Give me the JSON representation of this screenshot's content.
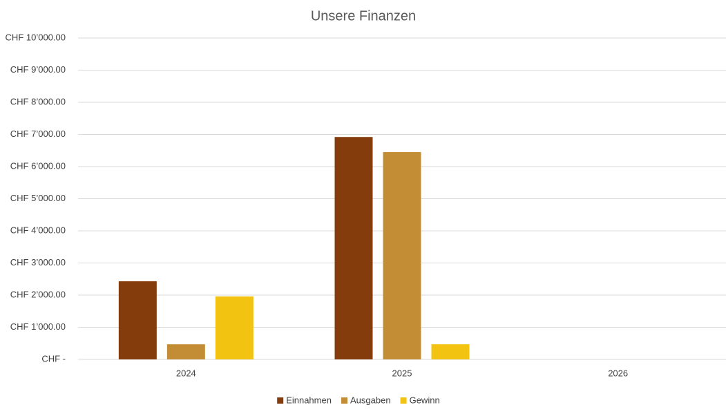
{
  "chart_data": {
    "type": "bar",
    "title": "Unsere Finanzen",
    "categories": [
      "2024",
      "2025",
      "2026"
    ],
    "series": [
      {
        "name": "Einnahmen",
        "color": "#843c0c",
        "values": [
          2430,
          6920,
          null
        ]
      },
      {
        "name": "Ausgaben",
        "color": "#c28d34",
        "values": [
          470,
          6450,
          null
        ]
      },
      {
        "name": "Gewinn",
        "color": "#f2c311",
        "values": [
          1960,
          470,
          null
        ]
      }
    ],
    "ylim": [
      0,
      10000
    ],
    "yticks": [
      {
        "value": 0,
        "label": "CHF -"
      },
      {
        "value": 1000,
        "label": "CHF 1’000.00"
      },
      {
        "value": 2000,
        "label": "CHF 2’000.00"
      },
      {
        "value": 3000,
        "label": "CHF 3’000.00"
      },
      {
        "value": 4000,
        "label": "CHF 4’000.00"
      },
      {
        "value": 5000,
        "label": "CHF 5’000.00"
      },
      {
        "value": 6000,
        "label": "CHF 6’000.00"
      },
      {
        "value": 7000,
        "label": "CHF 7’000.00"
      },
      {
        "value": 8000,
        "label": "CHF 8’000.00"
      },
      {
        "value": 9000,
        "label": "CHF 9’000.00"
      },
      {
        "value": 10000,
        "label": "CHF 10’000.00"
      }
    ],
    "grid": true,
    "legend": "bottom"
  }
}
